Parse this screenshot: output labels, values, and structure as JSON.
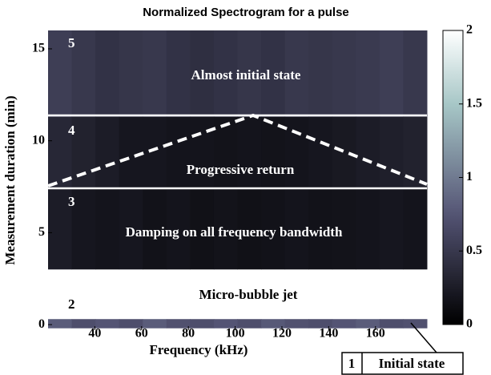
{
  "chart_data": {
    "type": "heatmap",
    "title": "Normalized Spectrogram for a pulse",
    "xlabel": "Frequency (kHz)",
    "ylabel": "Measurement duration (min)",
    "xlim": [
      20,
      182
    ],
    "ylim": [
      -0.3,
      16
    ],
    "xticks": [
      40,
      60,
      80,
      100,
      120,
      140,
      160
    ],
    "yticks": [
      0,
      5,
      10,
      15
    ],
    "colormap": "bone",
    "clim": [
      0,
      2
    ],
    "cticks": [
      0,
      0.5,
      1,
      1.5,
      2
    ],
    "bands": [
      {
        "ylim": [
          -0.2,
          0.3
        ],
        "values": [
          0.8,
          0.7,
          0.75,
          0.7,
          0.8,
          0.72,
          0.7,
          0.75,
          0.7,
          0.78,
          0.72,
          0.7,
          0.75,
          0.8,
          0.7,
          0.72
        ]
      },
      {
        "ylim": [
          3,
          7.4
        ],
        "values": [
          0.25,
          0.2,
          0.18,
          0.2,
          0.16,
          0.18,
          0.15,
          0.17,
          0.15,
          0.16,
          0.18,
          0.16,
          0.17,
          0.18,
          0.2,
          0.18
        ]
      },
      {
        "ylim": [
          7.4,
          11.3
        ],
        "values": [
          0.35,
          0.3,
          0.25,
          0.2,
          0.2,
          0.18,
          0.18,
          0.17,
          0.18,
          0.17,
          0.18,
          0.2,
          0.22,
          0.25,
          0.28,
          0.3
        ]
      },
      {
        "ylim": [
          11.3,
          16
        ],
        "values": [
          0.55,
          0.5,
          0.45,
          0.48,
          0.5,
          0.45,
          0.42,
          0.45,
          0.48,
          0.45,
          0.5,
          0.48,
          0.5,
          0.52,
          0.55,
          0.5
        ]
      }
    ],
    "annotations": {
      "region_5": "5",
      "region_5_text": "Almost initial state",
      "region_4": "4",
      "region_4_text": "Progressive return",
      "region_3": "3",
      "region_3_text": "Damping on all frequency bandwidth",
      "region_2": "2",
      "region_2_text": "Micro-bubble jet",
      "region_1": "1",
      "region_1_text": "Initial state"
    }
  }
}
